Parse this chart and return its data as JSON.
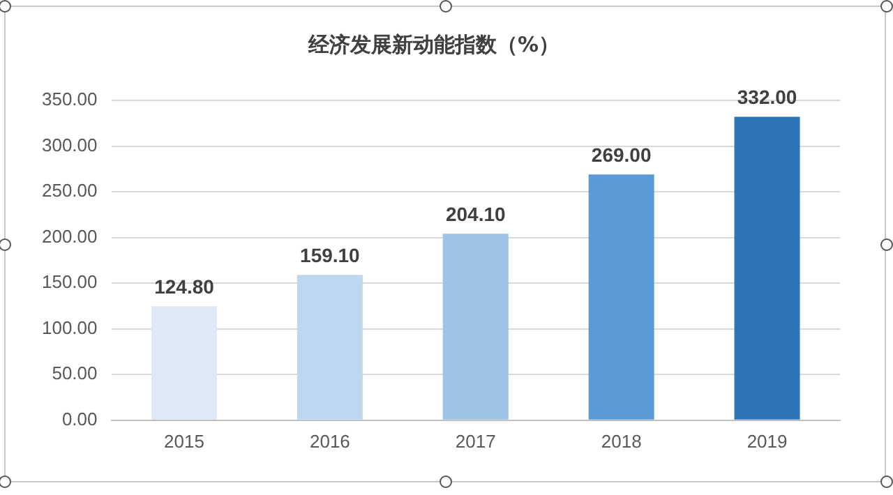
{
  "chart_data": {
    "type": "bar",
    "title": "经济发展新动能指数（%）",
    "categories": [
      "2015",
      "2016",
      "2017",
      "2018",
      "2019"
    ],
    "values": [
      124.8,
      159.1,
      204.1,
      269.0,
      332.0
    ],
    "colors": [
      "#dde9f6",
      "#bdd7ee",
      "#9dc3e6",
      "#5b9bd5",
      "#2e75b6"
    ],
    "value_labels": [
      "124.80",
      "159.10",
      "204.10",
      "269.00",
      "332.00"
    ],
    "ylim": [
      0,
      350
    ],
    "yticks": [
      {
        "value": 0,
        "label": "0.00"
      },
      {
        "value": 50,
        "label": "50.00"
      },
      {
        "value": 100,
        "label": "100.00"
      },
      {
        "value": 150,
        "label": "150.00"
      },
      {
        "value": 200,
        "label": "200.00"
      },
      {
        "value": 250,
        "label": "250.00"
      },
      {
        "value": 300,
        "label": "300.00"
      },
      {
        "value": 350,
        "label": "350.00"
      }
    ],
    "grid": "y"
  }
}
